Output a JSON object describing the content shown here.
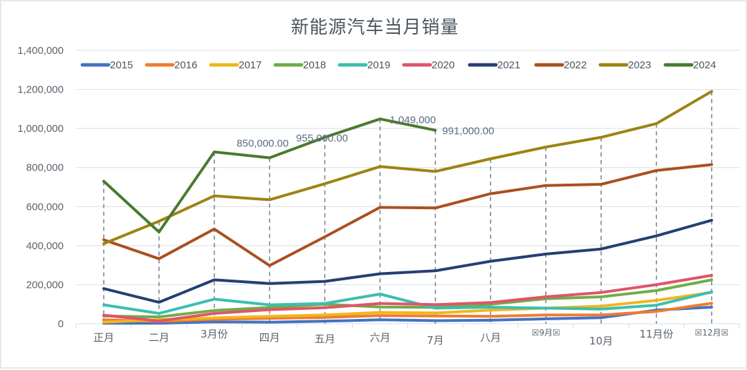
{
  "chart_data": {
    "type": "line",
    "title": "新能源汽车当月销量",
    "xlabel": "",
    "ylabel": "",
    "ylim": [
      0,
      1400000
    ],
    "yticks": [
      0,
      200000,
      400000,
      600000,
      800000,
      1000000,
      1200000,
      1400000
    ],
    "ytick_labels": [
      "0",
      "200,000",
      "400,000",
      "600,000",
      "800,000",
      "1,000,000",
      "1,200,000",
      "1,400,000"
    ],
    "grid": true,
    "legend_position": "top",
    "categories": [
      "正月",
      "二月",
      "3月份",
      "四月",
      "五月",
      "六月",
      "7月",
      "八月",
      "☒9月☒",
      "10月",
      "11月份",
      "☒12月☒"
    ],
    "series": [
      {
        "name": "2015",
        "color": "#4472c4",
        "values": [
          3000,
          3000,
          10000,
          8000,
          13000,
          20000,
          16000,
          18000,
          25000,
          31000,
          70000,
          85000
        ]
      },
      {
        "name": "2016",
        "color": "#ed7d31",
        "values": [
          20000,
          12000,
          23000,
          28000,
          32000,
          42000,
          40000,
          38000,
          45000,
          45000,
          63000,
          105000
        ]
      },
      {
        "name": "2017",
        "color": "#f2b51c",
        "values": [
          8000,
          20000,
          30000,
          38000,
          45000,
          58000,
          55000,
          70000,
          80000,
          90000,
          120000,
          160000
        ]
      },
      {
        "name": "2018",
        "color": "#70ad47",
        "values": [
          40000,
          35000,
          68000,
          83000,
          100000,
          86000,
          84000,
          100000,
          128000,
          138000,
          170000,
          225000
        ]
      },
      {
        "name": "2019",
        "color": "#3bbfb0",
        "values": [
          97000,
          53000,
          126000,
          97000,
          104000,
          152000,
          80000,
          85000,
          80000,
          75000,
          95000,
          163000
        ]
      },
      {
        "name": "2020",
        "color": "#e0546a",
        "values": [
          44000,
          14000,
          53000,
          72000,
          82000,
          104000,
          98000,
          109000,
          138000,
          160000,
          200000,
          248000
        ]
      },
      {
        "name": "2021",
        "color": "#253f73",
        "values": [
          180000,
          110000,
          225000,
          206000,
          217000,
          256000,
          271000,
          320000,
          357000,
          383000,
          450000,
          530000
        ]
      },
      {
        "name": "2022",
        "color": "#a9501f",
        "values": [
          430000,
          333000,
          485000,
          298000,
          445000,
          596000,
          593000,
          666000,
          708000,
          714000,
          785000,
          815000
        ]
      },
      {
        "name": "2023",
        "color": "#9c8414",
        "values": [
          410000,
          525000,
          655000,
          635000,
          717000,
          805000,
          780000,
          845000,
          905000,
          955000,
          1025000,
          1190000
        ]
      },
      {
        "name": "2024",
        "color": "#4a7a2e",
        "values": [
          730000,
          470000,
          880000,
          850000,
          955000,
          1049000,
          991000,
          null,
          null,
          null,
          null,
          null
        ]
      }
    ],
    "annotations": [
      {
        "series": "2024",
        "category": "四月",
        "text": "850,000.00"
      },
      {
        "series": "2024",
        "category": "五月",
        "text": "955,000.00"
      },
      {
        "series": "2024",
        "category": "六月",
        "text": "1,049,000"
      },
      {
        "series": "2024",
        "category": "7月",
        "text": "991,000.00"
      }
    ],
    "drop_lines": true
  }
}
